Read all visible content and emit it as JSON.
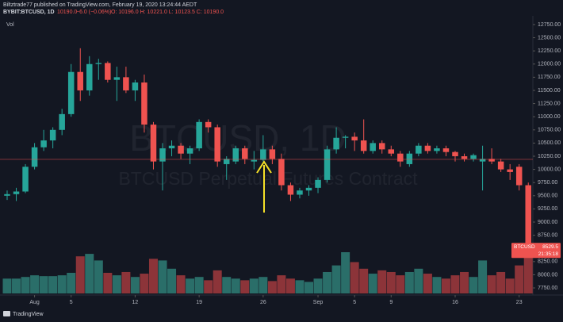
{
  "header": {
    "publisher": "Biltztrade77 published on TradingView.com, February 19, 2020 13:24:44 AEDT",
    "symbol": "BYBIT:BTCUSD, 1D",
    "last": "10190.0",
    "change": "−6.0 (−0.06%)",
    "ohlc_text": "O: 10196.0  H: 10221.0  L: 10123.5  C: 10190.0"
  },
  "footer": {
    "brand": "TradingView"
  },
  "chart_data": {
    "type": "candlestick",
    "watermark": "BTCUSD, 1D",
    "watermark_subtitle": "BTCUSD Perpetual Futures Contract",
    "volume_label": "Vol",
    "symbol_tag": "BTCUSD",
    "countdown": "21:35:18",
    "up_color": "#26a69a",
    "down_color": "#ef5350",
    "volume_up_color": "#2a6e69",
    "volume_down_color": "#8c3439",
    "price_line": 10190,
    "xlim": [
      -0.78,
      57.5
    ],
    "xticks": [
      {
        "value": 3,
        "label": "Aug"
      },
      {
        "value": 7,
        "label": "5"
      },
      {
        "value": 14,
        "label": "12"
      },
      {
        "value": 21,
        "label": "19"
      },
      {
        "value": 28,
        "label": "26"
      },
      {
        "value": 34,
        "label": "Sep"
      },
      {
        "value": 38,
        "label": "5"
      },
      {
        "value": 42,
        "label": "9"
      },
      {
        "value": 49,
        "label": "16"
      },
      {
        "value": 56,
        "label": "23"
      }
    ],
    "ylim": [
      7645,
      12915
    ],
    "yticks": [
      {
        "value": 12750,
        "label": "12750.00"
      },
      {
        "value": 12500,
        "label": "12500.00"
      },
      {
        "value": 12250,
        "label": "12250.00"
      },
      {
        "value": 12000,
        "label": "12000.00"
      },
      {
        "value": 11750,
        "label": "11750.00"
      },
      {
        "value": 11500,
        "label": "11500.00"
      },
      {
        "value": 11250,
        "label": "11250.00"
      },
      {
        "value": 11000,
        "label": "11000.00"
      },
      {
        "value": 10750,
        "label": "10750.00"
      },
      {
        "value": 10500,
        "label": "10500.00"
      },
      {
        "value": 10250,
        "label": "10250.00"
      },
      {
        "value": 10000,
        "label": "10000.00"
      },
      {
        "value": 9750,
        "label": "9750.00"
      },
      {
        "value": 9500,
        "label": "9500.00"
      },
      {
        "value": 9250,
        "label": "9250.00"
      },
      {
        "value": 9000,
        "label": "9000.00"
      },
      {
        "value": 8750,
        "label": "8750.00"
      },
      {
        "value": 8250,
        "label": "8250.00"
      },
      {
        "value": 8000,
        "label": "8000.00"
      },
      {
        "value": 7750,
        "label": "7750.00"
      }
    ],
    "ohlc": [
      [
        9500,
        9600,
        9420,
        9530
      ],
      [
        9530,
        9650,
        9400,
        9580
      ],
      [
        9580,
        10100,
        9550,
        10050
      ],
      [
        10050,
        10500,
        10000,
        10420
      ],
      [
        10420,
        10750,
        10350,
        10550
      ],
      [
        10550,
        10800,
        10400,
        10750
      ],
      [
        10750,
        11150,
        10650,
        11050
      ],
      [
        11050,
        12000,
        11000,
        11850
      ],
      [
        11850,
        12300,
        11300,
        11500
      ],
      [
        11500,
        12150,
        11400,
        12000
      ],
      [
        12000,
        12100,
        11700,
        12020
      ],
      [
        12020,
        12050,
        11650,
        11700
      ],
      [
        11700,
        11950,
        11300,
        11750
      ],
      [
        11750,
        11950,
        11450,
        11500
      ],
      [
        11500,
        11700,
        11300,
        11650
      ],
      [
        11650,
        11800,
        10700,
        10850
      ],
      [
        10850,
        10900,
        10000,
        10150
      ],
      [
        10150,
        10500,
        9600,
        10400
      ],
      [
        10400,
        10550,
        10250,
        10450
      ],
      [
        10450,
        10500,
        10200,
        10300
      ],
      [
        10300,
        10450,
        10100,
        10400
      ],
      [
        10400,
        10950,
        10350,
        10900
      ],
      [
        10900,
        10950,
        10700,
        10800
      ],
      [
        10800,
        10850,
        10050,
        10150
      ],
      [
        10100,
        10250,
        9800,
        10200
      ],
      [
        10150,
        10450,
        10100,
        10400
      ],
      [
        10400,
        10450,
        10100,
        10200
      ],
      [
        10150,
        10350,
        10000,
        10180
      ],
      [
        10180,
        10650,
        10150,
        10380
      ],
      [
        10380,
        10450,
        10100,
        10200
      ],
      [
        10200,
        10300,
        9600,
        9700
      ],
      [
        9700,
        9750,
        9400,
        9520
      ],
      [
        9520,
        9650,
        9450,
        9600
      ],
      [
        9600,
        9700,
        9500,
        9650
      ],
      [
        9650,
        9850,
        9550,
        9800
      ],
      [
        9800,
        10450,
        9750,
        10380
      ],
      [
        10380,
        10800,
        10300,
        10600
      ],
      [
        10600,
        10650,
        10400,
        10620
      ],
      [
        10620,
        10700,
        10350,
        10550
      ],
      [
        10550,
        10950,
        10300,
        10350
      ],
      [
        10350,
        10550,
        10300,
        10500
      ],
      [
        10500,
        10550,
        10300,
        10380
      ],
      [
        10380,
        10450,
        10250,
        10300
      ],
      [
        10300,
        10350,
        10050,
        10150
      ],
      [
        10100,
        10350,
        10050,
        10300
      ],
      [
        10300,
        10500,
        10250,
        10450
      ],
      [
        10450,
        10500,
        10300,
        10350
      ],
      [
        10350,
        10450,
        10300,
        10400
      ],
      [
        10400,
        10450,
        10250,
        10330
      ],
      [
        10330,
        10350,
        10150,
        10250
      ],
      [
        10250,
        10300,
        10150,
        10200
      ],
      [
        10200,
        10300,
        10150,
        10270
      ],
      [
        10150,
        10450,
        9600,
        10200
      ],
      [
        10200,
        10400,
        10100,
        10150
      ],
      [
        10150,
        10200,
        9950,
        10000
      ],
      [
        10000,
        10100,
        9800,
        9950
      ],
      [
        10050,
        10100,
        9600,
        9700
      ],
      [
        9700,
        9750,
        8400,
        8529.5
      ]
    ],
    "volume": [
      18,
      18,
      20,
      22,
      21,
      21,
      22,
      25,
      45,
      48,
      40,
      25,
      22,
      26,
      20,
      24,
      42,
      40,
      30,
      22,
      18,
      20,
      16,
      28,
      20,
      18,
      16,
      18,
      20,
      15,
      22,
      18,
      16,
      14,
      18,
      26,
      34,
      50,
      38,
      30,
      24,
      28,
      26,
      22,
      26,
      30,
      24,
      20,
      18,
      22,
      26,
      20,
      40,
      22,
      26,
      18,
      34,
      46
    ]
  }
}
